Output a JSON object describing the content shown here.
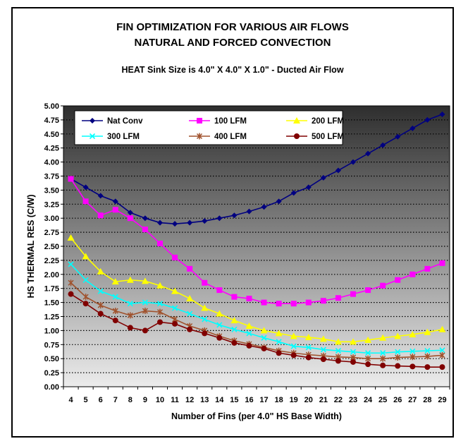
{
  "chart_data": {
    "type": "line",
    "title": "FIN OPTIMIZATION FOR VARIOUS AIR FLOWS",
    "title_line2": "NATURAL AND FORCED CONVECTION",
    "subtitle": "HEAT Sink Size is 4.0\" X 4.0\" X 1.0\" - Ducted Air Flow",
    "xlabel": "Number of Fins (per 4.0\" HS Base Width)",
    "ylabel": "HS THERMAL RES (C/W)",
    "x": [
      4,
      5,
      6,
      7,
      8,
      9,
      10,
      11,
      12,
      13,
      14,
      15,
      16,
      17,
      18,
      19,
      20,
      21,
      22,
      23,
      24,
      25,
      26,
      27,
      28,
      29
    ],
    "ylim": [
      0,
      5
    ],
    "ytick_step": 0.25,
    "grid": "horizontal dotted",
    "legend": "top-left",
    "background": "gradient dark-gray to light-gray",
    "series": [
      {
        "name": "Nat Conv",
        "color": "#000080",
        "marker": "diamond",
        "values": [
          3.7,
          3.55,
          3.4,
          3.3,
          3.1,
          3.0,
          2.92,
          2.9,
          2.92,
          2.95,
          3.0,
          3.05,
          3.12,
          3.2,
          3.3,
          3.45,
          3.55,
          3.72,
          3.85,
          4.0,
          4.15,
          4.3,
          4.45,
          4.6,
          4.75,
          4.85
        ]
      },
      {
        "name": "100 LFM",
        "color": "#ff00ff",
        "marker": "square",
        "values": [
          3.7,
          3.3,
          3.05,
          3.15,
          3.0,
          2.8,
          2.55,
          2.3,
          2.1,
          1.85,
          1.72,
          1.6,
          1.57,
          1.5,
          1.48,
          1.48,
          1.5,
          1.53,
          1.58,
          1.65,
          1.72,
          1.8,
          1.9,
          2.0,
          2.1,
          2.2
        ]
      },
      {
        "name": "200 LFM",
        "color": "#ffff00",
        "marker": "triangle",
        "values": [
          2.65,
          2.32,
          2.05,
          1.87,
          1.9,
          1.88,
          1.8,
          1.7,
          1.57,
          1.4,
          1.3,
          1.18,
          1.08,
          1.0,
          0.95,
          0.9,
          0.88,
          0.85,
          0.8,
          0.8,
          0.83,
          0.87,
          0.9,
          0.93,
          0.97,
          1.02
        ]
      },
      {
        "name": "300 LFM",
        "color": "#00ffff",
        "marker": "x",
        "values": [
          2.18,
          1.9,
          1.7,
          1.6,
          1.48,
          1.5,
          1.48,
          1.4,
          1.3,
          1.2,
          1.1,
          1.02,
          0.95,
          0.87,
          0.8,
          0.72,
          0.7,
          0.66,
          0.64,
          0.62,
          0.6,
          0.6,
          0.62,
          0.63,
          0.64,
          0.65
        ]
      },
      {
        "name": "400 LFM",
        "color": "#a0522d",
        "marker": "star",
        "values": [
          1.85,
          1.6,
          1.45,
          1.35,
          1.27,
          1.35,
          1.33,
          1.2,
          1.08,
          1.0,
          0.9,
          0.82,
          0.76,
          0.7,
          0.64,
          0.6,
          0.57,
          0.55,
          0.53,
          0.52,
          0.5,
          0.5,
          0.52,
          0.53,
          0.54,
          0.56
        ]
      },
      {
        "name": "500 LFM",
        "color": "#800000",
        "marker": "circle",
        "values": [
          1.65,
          1.48,
          1.3,
          1.18,
          1.05,
          1.0,
          1.15,
          1.12,
          1.02,
          0.95,
          0.87,
          0.78,
          0.73,
          0.68,
          0.6,
          0.56,
          0.52,
          0.49,
          0.46,
          0.44,
          0.4,
          0.38,
          0.37,
          0.36,
          0.35,
          0.35
        ]
      }
    ]
  }
}
